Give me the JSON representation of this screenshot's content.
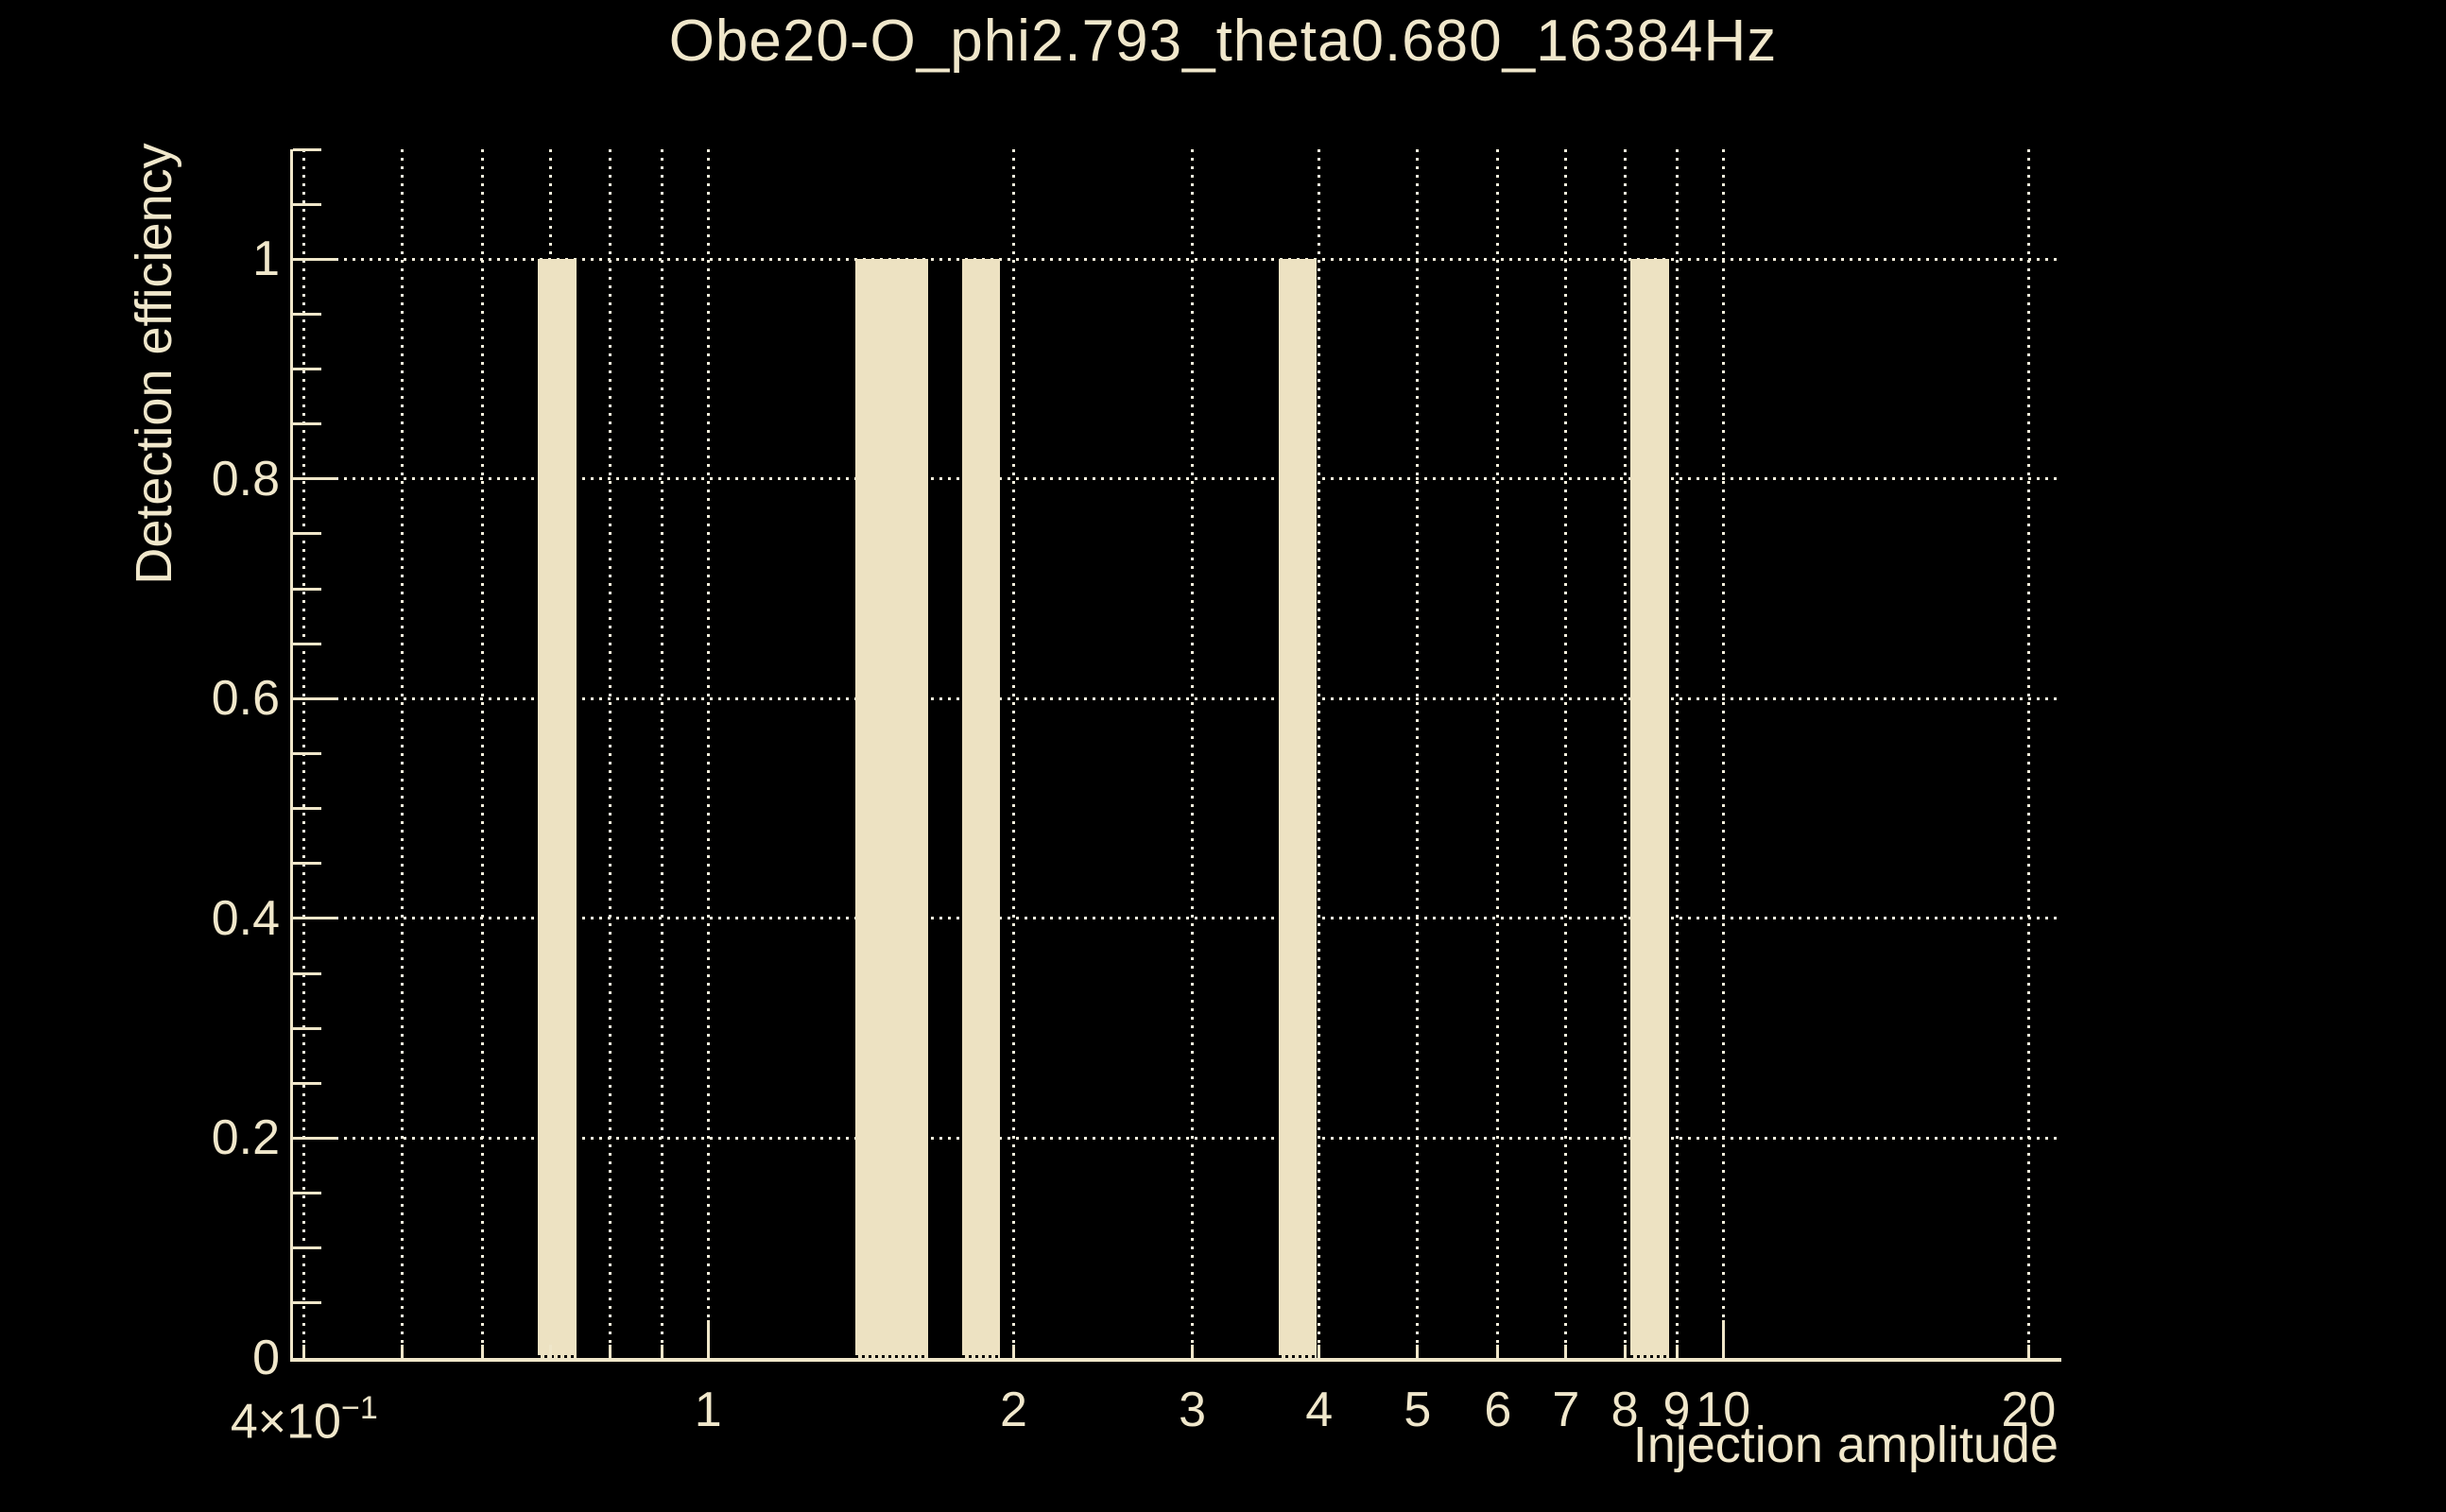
{
  "chart_data": {
    "type": "bar",
    "title": "Obe20-O_phi2.793_theta0.680_16384Hz",
    "xlabel": "Injection amplitude",
    "ylabel": "Detection efficiency",
    "x_scale": "log",
    "xlim": [
      0.39,
      21.4
    ],
    "ylim": [
      0,
      1.1
    ],
    "grid": true,
    "legend": "none",
    "bars": [
      {
        "x_from": 0.68,
        "x_to": 0.742,
        "height": 1.0
      },
      {
        "x_from": 1.398,
        "x_to": 1.649,
        "height": 1.0
      },
      {
        "x_from": 1.778,
        "x_to": 1.937,
        "height": 1.0
      },
      {
        "x_from": 3.648,
        "x_to": 3.975,
        "height": 1.0
      },
      {
        "x_from": 8.1,
        "x_to": 8.85,
        "height": 1.0
      }
    ],
    "x_gridlines": [
      0.4,
      0.5,
      0.6,
      0.7,
      0.8,
      0.9,
      1,
      2,
      3,
      4,
      5,
      6,
      7,
      8,
      9,
      10,
      20
    ],
    "y_gridlines": [
      0.2,
      0.4,
      0.6,
      0.8,
      1.0
    ],
    "x_tick_labels": [
      {
        "v": 0.4,
        "label": "4×10",
        "sup": "−1"
      },
      {
        "v": 1,
        "label": "1"
      },
      {
        "v": 2,
        "label": "2"
      },
      {
        "v": 3,
        "label": "3"
      },
      {
        "v": 4,
        "label": "4"
      },
      {
        "v": 5,
        "label": "5"
      },
      {
        "v": 6,
        "label": "6"
      },
      {
        "v": 7,
        "label": "7"
      },
      {
        "v": 8,
        "label": "8"
      },
      {
        "v": 9,
        "label": "9"
      },
      {
        "v": 10,
        "label": "10"
      },
      {
        "v": 20,
        "label": "20"
      }
    ],
    "y_tick_labels": [
      {
        "v": 0,
        "label": "0"
      },
      {
        "v": 0.2,
        "label": "0.2"
      },
      {
        "v": 0.4,
        "label": "0.4"
      },
      {
        "v": 0.6,
        "label": "0.6"
      },
      {
        "v": 0.8,
        "label": "0.8"
      },
      {
        "v": 1,
        "label": "1"
      }
    ],
    "x_major_ticks": [
      1,
      10
    ],
    "x_minor_ticks": [
      0.4,
      0.5,
      0.6,
      0.7,
      0.8,
      0.9,
      2,
      3,
      4,
      5,
      6,
      7,
      8,
      9,
      20
    ],
    "y_major_ticks": [
      0.2,
      0.4,
      0.6,
      0.8,
      1.0
    ],
    "y_minor_ticks": [
      0.05,
      0.1,
      0.15,
      0.25,
      0.3,
      0.35,
      0.45,
      0.5,
      0.55,
      0.65,
      0.7,
      0.75,
      0.85,
      0.9,
      0.95,
      1.05,
      1.1
    ],
    "colors": {
      "background": "#000000",
      "bar_fill": "#EDE2C2",
      "axis": "#EFE6C9",
      "grid": "#F5EFDC",
      "text": "#F0E7CB",
      "bar_base_dots": "#000000"
    }
  }
}
